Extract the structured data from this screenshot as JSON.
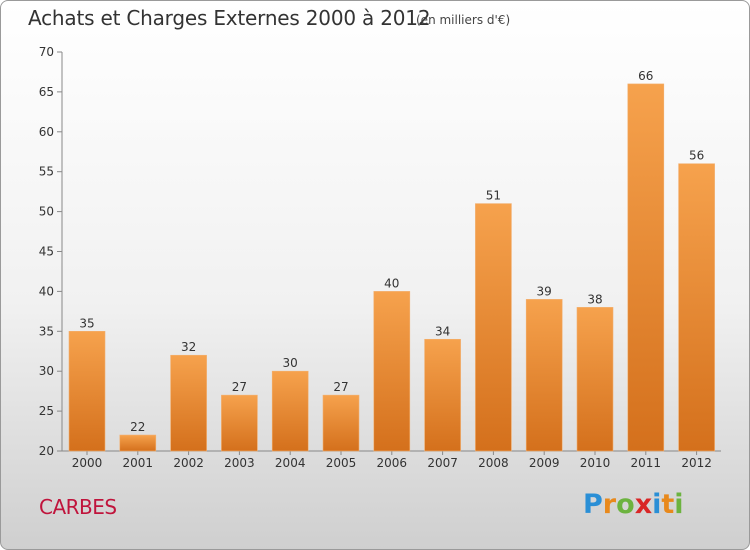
{
  "header": {
    "title": "Achats et Charges Externes 2000 à 2012",
    "subtitle": "(en milliers d'€)"
  },
  "footer": {
    "town": "CARBES",
    "logo": {
      "text": "Proxiti",
      "letter_colors": [
        "#2a8fd6",
        "#e8891c",
        "#6cb33f",
        "#d92626",
        "#2a8fd6",
        "#e8891c",
        "#6cb33f"
      ]
    }
  },
  "chart_data": {
    "type": "bar",
    "categories": [
      "2000",
      "2001",
      "2002",
      "2003",
      "2004",
      "2005",
      "2006",
      "2007",
      "2008",
      "2009",
      "2010",
      "2011",
      "2012"
    ],
    "values": [
      35,
      22,
      32,
      27,
      30,
      27,
      40,
      34,
      51,
      39,
      38,
      66,
      56
    ],
    "ylim": [
      20,
      70
    ],
    "yticks": [
      20,
      25,
      30,
      35,
      40,
      45,
      50,
      55,
      60,
      65,
      70
    ],
    "grid": false,
    "bar_color_light": "#f6a24d",
    "bar_color_dark": "#d4701c"
  }
}
